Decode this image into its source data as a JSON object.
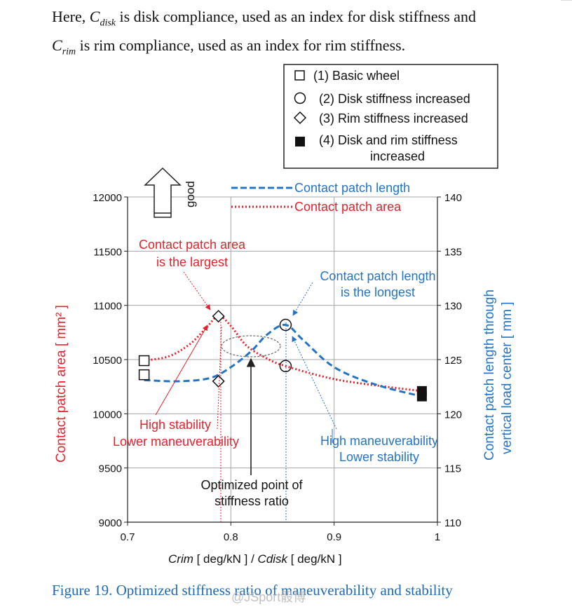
{
  "intro": {
    "line1_pre": "Here, ",
    "c1": "C",
    "c1_sub": "disk",
    "line1_post": " is disk compliance, used as an index for disk stiffness and",
    "c2": "C",
    "c2_sub": "rim",
    "line2_post": " is rim compliance, used as an index for rim stiffness."
  },
  "caption": "Figure 19. Optimized stiffness ratio of maneuverability and stability",
  "watermark": "@JSport骰博",
  "colors": {
    "area": "#e8212b",
    "length": "#2474c6",
    "axis": "#000000",
    "grid": "#a6a6a6",
    "caption": "#1e6ab4"
  },
  "chart_data": {
    "type": "scatter",
    "x_label_parts": {
      "a": "Crim",
      "b": " [ deg/kN ] / ",
      "c": "Cdisk",
      "d": " [ deg/kN ]"
    },
    "x_ticks": [
      "0.7",
      "0.8",
      "0.9",
      "1"
    ],
    "x_tick_values": [
      0.7,
      0.8,
      0.9,
      1.0
    ],
    "xlim": [
      0.7,
      1.0
    ],
    "y_left_label": "Contact patch area   [ mm² ]",
    "y_left_ticks": [
      "9000",
      "9500",
      "10000",
      "10500",
      "11000",
      "11500",
      "12000"
    ],
    "y_left_tick_values": [
      9000,
      9500,
      10000,
      10500,
      11000,
      11500,
      12000
    ],
    "ylim_left": [
      9000,
      12000
    ],
    "y_right_label_1": "Contact patch length through",
    "y_right_label_2": "vertical load center   [ mm ]",
    "y_right_ticks": [
      "110",
      "115",
      "120",
      "125",
      "130",
      "135",
      "140"
    ],
    "y_right_tick_values": [
      110,
      115,
      120,
      125,
      130,
      135,
      140
    ],
    "ylim_right": [
      110,
      140
    ],
    "grid": true,
    "legend_markers": [
      {
        "symbol": "open-square",
        "label": "(1) Basic wheel"
      },
      {
        "symbol": "open-circle",
        "label": "(2) Disk stiffness increased"
      },
      {
        "symbol": "open-diamond",
        "label": "(3) Rim stiffness increased"
      },
      {
        "symbol": "filled-square",
        "label_1": "(4) Disk and rim stiffness",
        "label_2": "increased"
      }
    ],
    "legend_lines": [
      {
        "style": "dashed",
        "label": "Contact patch length"
      },
      {
        "style": "dotted",
        "label": "Contact patch area"
      }
    ],
    "series": [
      {
        "name": "Contact patch area",
        "axis": "left",
        "points": [
          {
            "symbol": "open-square",
            "x": 0.716,
            "y": 10490
          },
          {
            "symbol": "open-diamond",
            "x": 0.788,
            "y": 10900
          },
          {
            "symbol": "open-circle",
            "x": 0.853,
            "y": 10440
          },
          {
            "symbol": "filled-square",
            "x": 0.985,
            "y": 10210
          }
        ],
        "curve": [
          [
            0.716,
            10490
          ],
          [
            0.74,
            10530
          ],
          [
            0.76,
            10640
          ],
          [
            0.775,
            10780
          ],
          [
            0.788,
            10900
          ],
          [
            0.8,
            10810
          ],
          [
            0.815,
            10630
          ],
          [
            0.835,
            10510
          ],
          [
            0.853,
            10440
          ],
          [
            0.9,
            10320
          ],
          [
            0.95,
            10250
          ],
          [
            0.985,
            10210
          ]
        ]
      },
      {
        "name": "Contact patch length",
        "axis": "right",
        "points": [
          {
            "symbol": "open-square",
            "x": 0.716,
            "y": 123.6
          },
          {
            "symbol": "open-diamond",
            "x": 0.788,
            "y": 123.0
          },
          {
            "symbol": "open-circle",
            "x": 0.853,
            "y": 128.2
          },
          {
            "symbol": "filled-square",
            "x": 0.985,
            "y": 121.6
          }
        ],
        "curve": [
          [
            0.716,
            123.1
          ],
          [
            0.75,
            123.0
          ],
          [
            0.78,
            123.3
          ],
          [
            0.8,
            124.3
          ],
          [
            0.82,
            125.8
          ],
          [
            0.835,
            127.3
          ],
          [
            0.853,
            128.2
          ],
          [
            0.87,
            126.8
          ],
          [
            0.9,
            124.3
          ],
          [
            0.94,
            122.7
          ],
          [
            0.985,
            121.6
          ]
        ]
      }
    ],
    "annotations": {
      "area_largest_1": "Contact patch area",
      "area_largest_2": "is the largest",
      "length_longest_1": "Contact patch length",
      "length_longest_2": "is the longest",
      "left_note_1": "High stability",
      "left_note_2": "Lower maneuverability",
      "right_note_1": "High maneuverability",
      "right_note_2": "Lower stability",
      "optimized_1": "Optimized point of",
      "optimized_2": "stiffness ratio",
      "good": "good"
    }
  }
}
